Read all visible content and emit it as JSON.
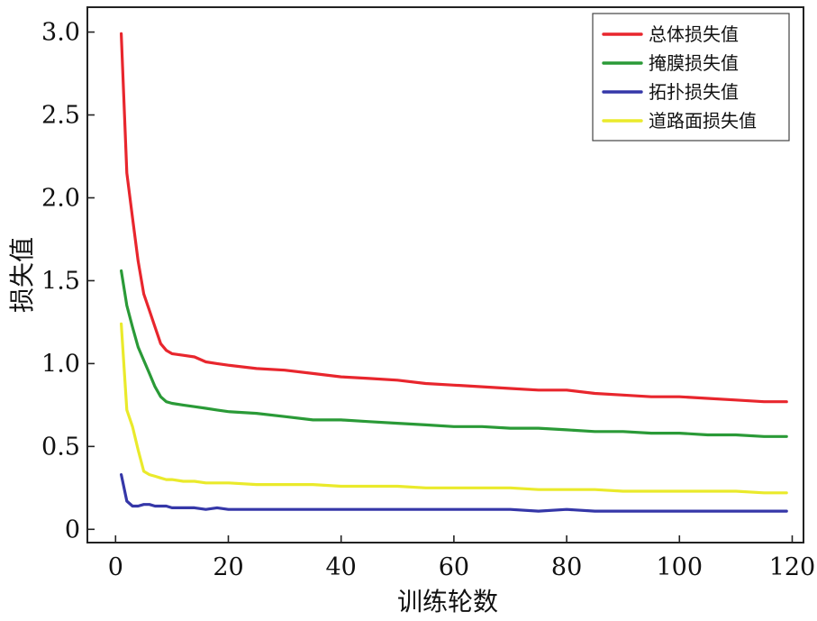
{
  "chart_data": {
    "type": "line",
    "xlabel": "训练轮数",
    "ylabel": "损失值",
    "xlim": [
      -5,
      122
    ],
    "ylim": [
      -0.08,
      3.15
    ],
    "xticks": [
      0,
      20,
      40,
      60,
      80,
      100,
      120
    ],
    "xtick_labels": [
      "0",
      "20",
      "40",
      "60",
      "80",
      "100",
      "120"
    ],
    "yticks": [
      0,
      0.5,
      1.0,
      1.5,
      2.0,
      2.5,
      3.0
    ],
    "ytick_labels": [
      "0",
      "0.5",
      "1.0",
      "1.5",
      "2.0",
      "2.5",
      "3.0"
    ],
    "grid": false,
    "legend_position": "top-right",
    "series": [
      {
        "name": "总体损失值",
        "color": "#e8262d",
        "x": [
          1,
          2,
          3,
          4,
          5,
          6,
          7,
          8,
          9,
          10,
          12,
          14,
          16,
          18,
          20,
          25,
          30,
          35,
          40,
          45,
          50,
          55,
          60,
          65,
          70,
          75,
          80,
          85,
          90,
          95,
          100,
          105,
          110,
          115,
          119
        ],
        "y": [
          2.99,
          2.15,
          1.88,
          1.62,
          1.42,
          1.32,
          1.22,
          1.12,
          1.08,
          1.06,
          1.05,
          1.04,
          1.01,
          1.0,
          0.99,
          0.97,
          0.96,
          0.94,
          0.92,
          0.91,
          0.9,
          0.88,
          0.87,
          0.86,
          0.85,
          0.84,
          0.84,
          0.82,
          0.81,
          0.8,
          0.8,
          0.79,
          0.78,
          0.77,
          0.77
        ]
      },
      {
        "name": "掩膜损失值",
        "color": "#2a9a37",
        "x": [
          1,
          2,
          3,
          4,
          5,
          6,
          7,
          8,
          9,
          10,
          12,
          14,
          16,
          18,
          20,
          25,
          30,
          35,
          40,
          45,
          50,
          55,
          60,
          65,
          70,
          75,
          80,
          85,
          90,
          95,
          100,
          105,
          110,
          115,
          119
        ],
        "y": [
          1.56,
          1.35,
          1.22,
          1.1,
          1.02,
          0.94,
          0.86,
          0.8,
          0.77,
          0.76,
          0.75,
          0.74,
          0.73,
          0.72,
          0.71,
          0.7,
          0.68,
          0.66,
          0.66,
          0.65,
          0.64,
          0.63,
          0.62,
          0.62,
          0.61,
          0.61,
          0.6,
          0.59,
          0.59,
          0.58,
          0.58,
          0.57,
          0.57,
          0.56,
          0.56
        ]
      },
      {
        "name": "拓扑损失值",
        "color": "#3537a8",
        "x": [
          1,
          2,
          3,
          4,
          5,
          6,
          7,
          8,
          9,
          10,
          12,
          14,
          16,
          18,
          20,
          25,
          30,
          35,
          40,
          45,
          50,
          55,
          60,
          65,
          70,
          75,
          80,
          85,
          90,
          95,
          100,
          105,
          110,
          115,
          119
        ],
        "y": [
          0.33,
          0.17,
          0.14,
          0.14,
          0.15,
          0.15,
          0.14,
          0.14,
          0.14,
          0.13,
          0.13,
          0.13,
          0.12,
          0.13,
          0.12,
          0.12,
          0.12,
          0.12,
          0.12,
          0.12,
          0.12,
          0.12,
          0.12,
          0.12,
          0.12,
          0.11,
          0.12,
          0.11,
          0.11,
          0.11,
          0.11,
          0.11,
          0.11,
          0.11,
          0.11
        ]
      },
      {
        "name": "道路面损失值",
        "color": "#eaea2b",
        "x": [
          1,
          2,
          3,
          4,
          5,
          6,
          7,
          8,
          9,
          10,
          12,
          14,
          16,
          18,
          20,
          25,
          30,
          35,
          40,
          45,
          50,
          55,
          60,
          65,
          70,
          75,
          80,
          85,
          90,
          95,
          100,
          105,
          110,
          115,
          119
        ],
        "y": [
          1.24,
          0.72,
          0.62,
          0.48,
          0.35,
          0.33,
          0.32,
          0.31,
          0.3,
          0.3,
          0.29,
          0.29,
          0.28,
          0.28,
          0.28,
          0.27,
          0.27,
          0.27,
          0.26,
          0.26,
          0.26,
          0.25,
          0.25,
          0.25,
          0.25,
          0.24,
          0.24,
          0.24,
          0.23,
          0.23,
          0.23,
          0.23,
          0.23,
          0.22,
          0.22
        ]
      }
    ]
  }
}
